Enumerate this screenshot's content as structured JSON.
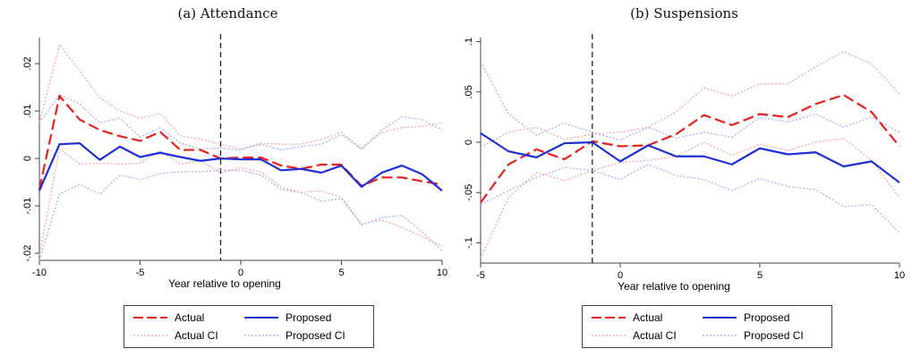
{
  "panels": [
    {
      "title": "(a) Attendance",
      "legend": {
        "actual": "Actual",
        "proposed": "Proposed",
        "actual_ci": "Actual CI",
        "proposed_ci": "Proposed CI"
      }
    },
    {
      "title": "(b) Suspensions",
      "legend": {
        "actual": "Actual",
        "proposed": "Proposed",
        "actual_ci": "Actual CI",
        "proposed_ci": "Proposed CI"
      }
    }
  ],
  "colors": {
    "actual": "#e8201c",
    "proposed": "#1f2fd6",
    "actual_ci": "#f2a0a0",
    "proposed_ci": "#a8a8ee",
    "axis": "#444444"
  },
  "chart_data": [
    {
      "type": "line",
      "title": "(a) Attendance",
      "xlabel": "Year relative to opening",
      "ylabel": "",
      "xlim": [
        -10,
        10
      ],
      "ylim": [
        -0.0215,
        0.0255
      ],
      "xticks": [
        -10,
        -5,
        0,
        5,
        10
      ],
      "xtick_labels": [
        "-10",
        "-5",
        "0",
        "5",
        "10"
      ],
      "yticks": [
        -0.02,
        -0.01,
        0,
        0.01,
        0.02
      ],
      "ytick_labels": [
        "-.02",
        "-.01",
        "0",
        ".01",
        ".02"
      ],
      "reference_line_x": -1,
      "legend_position": "bottom",
      "x": [
        -10,
        -9,
        -8,
        -7,
        -6,
        -5,
        -4,
        -3,
        -2,
        -1,
        0,
        1,
        2,
        3,
        4,
        5,
        6,
        7,
        8,
        9,
        10
      ],
      "series": [
        {
          "name": "Actual",
          "style": "long-dash",
          "values": [
            -0.0065,
            0.0132,
            0.0082,
            0.006,
            0.0047,
            0.0037,
            0.0056,
            0.0018,
            0.0018,
            0.0,
            0.0002,
            0.0002,
            -0.0015,
            -0.0022,
            -0.0013,
            -0.0013,
            -0.0058,
            -0.004,
            -0.004,
            -0.0048,
            -0.0055
          ]
        },
        {
          "name": "Proposed",
          "style": "solid",
          "values": [
            -0.0068,
            0.003,
            0.0032,
            -0.0003,
            0.0025,
            0.0003,
            0.0012,
            0.0003,
            -0.0005,
            0.0,
            -0.0002,
            -0.0002,
            -0.0025,
            -0.0022,
            -0.003,
            -0.0015,
            -0.006,
            -0.003,
            -0.0015,
            -0.0033,
            -0.0068
          ]
        },
        {
          "name": "Actual CI upper",
          "style": "dotted",
          "values": [
            0.0075,
            0.024,
            0.0185,
            0.0128,
            0.01,
            0.0085,
            0.0095,
            0.0048,
            0.004,
            0.003,
            0.002,
            0.0032,
            0.003,
            0.003,
            0.004,
            0.0055,
            0.002,
            0.0055,
            0.0065,
            0.0068,
            0.0075
          ]
        },
        {
          "name": "Actual CI lower",
          "style": "dotted",
          "values": [
            -0.0205,
            0.002,
            -0.0012,
            -0.001,
            -0.0012,
            -0.001,
            0.0016,
            -0.0012,
            -0.0005,
            -0.003,
            -0.002,
            -0.0028,
            -0.006,
            -0.0072,
            -0.0068,
            -0.0082,
            -0.0138,
            -0.013,
            -0.0145,
            -0.0165,
            -0.0185
          ]
        },
        {
          "name": "Proposed CI upper",
          "style": "dotted",
          "values": [
            0.0075,
            0.0135,
            0.0115,
            0.0075,
            0.0085,
            0.0045,
            0.0065,
            0.0032,
            0.002,
            0.0022,
            0.0018,
            0.003,
            0.0018,
            0.0025,
            0.003,
            0.005,
            0.002,
            0.006,
            0.0088,
            0.0082,
            0.006
          ]
        },
        {
          "name": "Proposed CI lower",
          "style": "dotted",
          "values": [
            -0.0215,
            -0.0075,
            -0.0055,
            -0.0075,
            -0.0035,
            -0.0045,
            -0.0032,
            -0.0028,
            -0.0028,
            -0.0025,
            -0.0025,
            -0.0035,
            -0.0065,
            -0.0072,
            -0.009,
            -0.0085,
            -0.014,
            -0.0125,
            -0.012,
            -0.0155,
            -0.0195
          ]
        }
      ]
    },
    {
      "type": "line",
      "title": "(b) Suspensions",
      "xlabel": "Year relative to opening",
      "ylabel": "",
      "xlim": [
        -5,
        10
      ],
      "ylim": [
        -0.12,
        0.104
      ],
      "xticks": [
        -5,
        0,
        5,
        10
      ],
      "xtick_labels": [
        "-5",
        "0",
        "5",
        "10"
      ],
      "yticks": [
        -0.1,
        -0.05,
        0,
        0.05,
        0.1
      ],
      "ytick_labels": [
        "-.1",
        "-.05",
        "0",
        ".05",
        ".1"
      ],
      "reference_line_x": -1,
      "legend_position": "bottom",
      "x": [
        -5,
        -4,
        -3,
        -2,
        -1,
        0,
        1,
        2,
        3,
        4,
        5,
        6,
        7,
        8,
        9,
        10
      ],
      "series": [
        {
          "name": "Actual",
          "style": "long-dash",
          "values": [
            -0.06,
            -0.022,
            -0.007,
            -0.017,
            0.001,
            -0.004,
            -0.003,
            0.008,
            0.027,
            0.017,
            0.028,
            0.025,
            0.038,
            0.047,
            0.03,
            -0.004
          ]
        },
        {
          "name": "Proposed",
          "style": "solid",
          "values": [
            0.009,
            -0.009,
            -0.015,
            -0.001,
            0.0,
            -0.019,
            -0.003,
            -0.014,
            -0.014,
            -0.022,
            -0.006,
            -0.012,
            -0.01,
            -0.024,
            -0.019,
            -0.04
          ]
        },
        {
          "name": "Actual CI upper",
          "style": "dotted",
          "values": [
            -0.005,
            0.01,
            0.015,
            0.003,
            0.008,
            0.01,
            0.015,
            0.03,
            0.054,
            0.046,
            0.058,
            0.058,
            0.075,
            0.09,
            0.078,
            0.048
          ]
        },
        {
          "name": "Actual CI lower",
          "style": "dotted",
          "values": [
            -0.115,
            -0.055,
            -0.03,
            -0.038,
            -0.028,
            -0.02,
            -0.018,
            -0.014,
            0.0,
            -0.013,
            -0.002,
            -0.008,
            0.0,
            0.004,
            -0.018,
            -0.055
          ]
        },
        {
          "name": "Proposed CI upper",
          "style": "dotted",
          "values": [
            0.08,
            0.028,
            0.007,
            0.019,
            0.01,
            0.002,
            0.015,
            0.004,
            0.01,
            0.005,
            0.025,
            0.02,
            0.028,
            0.015,
            0.025,
            0.01
          ]
        },
        {
          "name": "Proposed CI lower",
          "style": "dotted",
          "values": [
            -0.062,
            -0.048,
            -0.035,
            -0.025,
            -0.028,
            -0.037,
            -0.022,
            -0.033,
            -0.037,
            -0.048,
            -0.036,
            -0.044,
            -0.047,
            -0.064,
            -0.062,
            -0.09
          ]
        }
      ]
    }
  ]
}
